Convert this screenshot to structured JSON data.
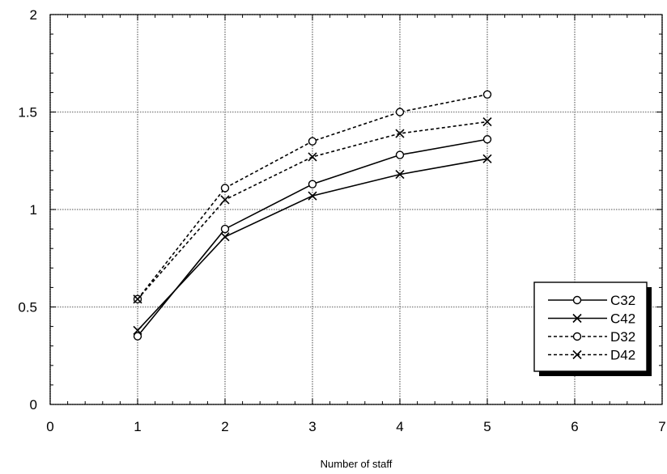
{
  "chart_data": {
    "type": "line",
    "title": "",
    "xlabel": "Number of staff",
    "ylabel": "",
    "xlim": [
      0,
      7
    ],
    "ylim": [
      0,
      2
    ],
    "xticks": [
      0,
      1,
      2,
      3,
      4,
      5,
      6,
      7
    ],
    "yticks": [
      0,
      0.5,
      1,
      1.5,
      2
    ],
    "xtick_labels": [
      "0",
      "1",
      "2",
      "3",
      "4",
      "5",
      "6",
      "7"
    ],
    "ytick_labels": [
      "0",
      "0.5",
      "1",
      "1.5",
      "2"
    ],
    "grid": true,
    "legend_position": "lower-right",
    "x": [
      1,
      2,
      3,
      4,
      5
    ],
    "series": [
      {
        "name": "C32",
        "values": [
          0.35,
          0.9,
          1.13,
          1.28,
          1.36
        ],
        "marker": "circle",
        "line": "solid"
      },
      {
        "name": "C42",
        "values": [
          0.38,
          0.86,
          1.07,
          1.18,
          1.26
        ],
        "marker": "x",
        "line": "solid"
      },
      {
        "name": "D32",
        "values": [
          0.54,
          1.11,
          1.35,
          1.5,
          1.59
        ],
        "marker": "circle",
        "line": "dashed"
      },
      {
        "name": "D42",
        "values": [
          0.54,
          1.05,
          1.27,
          1.39,
          1.45
        ],
        "marker": "x",
        "line": "dashed"
      }
    ]
  }
}
